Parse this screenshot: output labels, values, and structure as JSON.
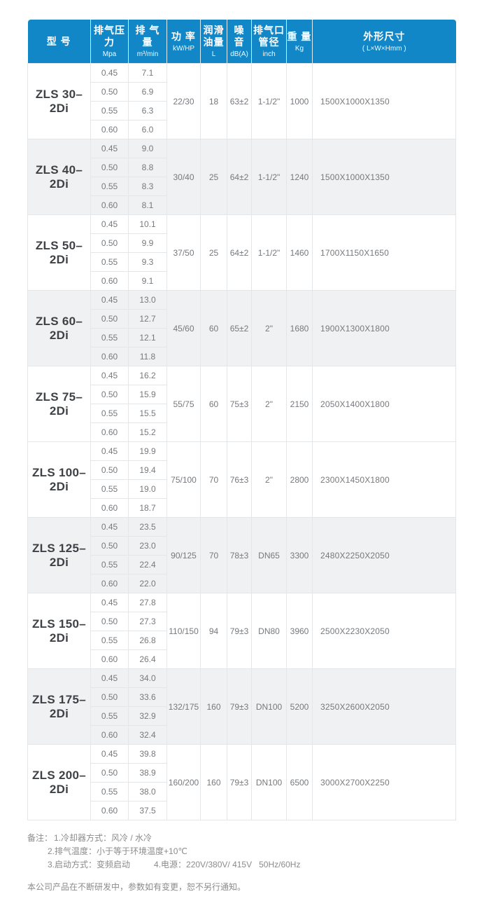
{
  "table": {
    "columns": [
      {
        "label": "型 号",
        "sub": ""
      },
      {
        "label": "排气压力",
        "sub": "Mpa"
      },
      {
        "label": "排 气 量",
        "sub": "m³/min"
      },
      {
        "label": "功 率",
        "sub": "kW/HP"
      },
      {
        "label": "润滑油量",
        "sub": "L"
      },
      {
        "label": "噪 音",
        "sub": "dB(A)"
      },
      {
        "label": "排气口管径",
        "sub": "inch"
      },
      {
        "label": "重 量",
        "sub": "Kg"
      },
      {
        "label": "外形尺寸",
        "sub": "( L×W×Hmm )"
      }
    ],
    "rows": [
      {
        "model": "ZLS 30–2Di",
        "shaded": false,
        "power": "22/30",
        "oil": "18",
        "noise": "63±2",
        "port": "1-1/2\"",
        "weight": "1000",
        "dims": "1500X1000X1350",
        "sub_rows": [
          {
            "pressure": "0.45",
            "flow": "7.1"
          },
          {
            "pressure": "0.50",
            "flow": "6.9"
          },
          {
            "pressure": "0.55",
            "flow": "6.3"
          },
          {
            "pressure": "0.60",
            "flow": "6.0"
          }
        ]
      },
      {
        "model": "ZLS 40–2Di",
        "shaded": true,
        "power": "30/40",
        "oil": "25",
        "noise": "64±2",
        "port": "1-1/2\"",
        "weight": "1240",
        "dims": "1500X1000X1350",
        "sub_rows": [
          {
            "pressure": "0.45",
            "flow": "9.0"
          },
          {
            "pressure": "0.50",
            "flow": "8.8"
          },
          {
            "pressure": "0.55",
            "flow": "8.3"
          },
          {
            "pressure": "0.60",
            "flow": "8.1"
          }
        ]
      },
      {
        "model": "ZLS 50–2Di",
        "shaded": false,
        "power": "37/50",
        "oil": "25",
        "noise": "64±2",
        "port": "1-1/2\"",
        "weight": "1460",
        "dims": "1700X1150X1650",
        "sub_rows": [
          {
            "pressure": "0.45",
            "flow": "10.1"
          },
          {
            "pressure": "0.50",
            "flow": "9.9"
          },
          {
            "pressure": "0.55",
            "flow": "9.3"
          },
          {
            "pressure": "0.60",
            "flow": "9.1"
          }
        ]
      },
      {
        "model": "ZLS 60–2Di",
        "shaded": true,
        "power": "45/60",
        "oil": "60",
        "noise": "65±2",
        "port": "2\"",
        "weight": "1680",
        "dims": "1900X1300X1800",
        "sub_rows": [
          {
            "pressure": "0.45",
            "flow": "13.0"
          },
          {
            "pressure": "0.50",
            "flow": "12.7"
          },
          {
            "pressure": "0.55",
            "flow": "12.1"
          },
          {
            "pressure": "0.60",
            "flow": "11.8"
          }
        ]
      },
      {
        "model": "ZLS 75–2Di",
        "shaded": false,
        "power": "55/75",
        "oil": "60",
        "noise": "75±3",
        "port": "2\"",
        "weight": "2150",
        "dims": "2050X1400X1800",
        "sub_rows": [
          {
            "pressure": "0.45",
            "flow": "16.2"
          },
          {
            "pressure": "0.50",
            "flow": "15.9"
          },
          {
            "pressure": "0.55",
            "flow": "15.5"
          },
          {
            "pressure": "0.60",
            "flow": "15.2"
          }
        ]
      },
      {
        "model": "ZLS 100–2Di",
        "shaded": false,
        "power": "75/100",
        "oil": "70",
        "noise": "76±3",
        "port": "2\"",
        "weight": "2800",
        "dims": "2300X1450X1800",
        "sub_rows": [
          {
            "pressure": "0.45",
            "flow": "19.9"
          },
          {
            "pressure": "0.50",
            "flow": "19.4"
          },
          {
            "pressure": "0.55",
            "flow": "19.0"
          },
          {
            "pressure": "0.60",
            "flow": "18.7"
          }
        ]
      },
      {
        "model": "ZLS 125–2Di",
        "shaded": true,
        "power": "90/125",
        "oil": "70",
        "noise": "78±3",
        "port": "DN65",
        "weight": "3300",
        "dims": "2480X2250X2050",
        "sub_rows": [
          {
            "pressure": "0.45",
            "flow": "23.5"
          },
          {
            "pressure": "0.50",
            "flow": "23.0"
          },
          {
            "pressure": "0.55",
            "flow": "22.4"
          },
          {
            "pressure": "0.60",
            "flow": "22.0"
          }
        ]
      },
      {
        "model": "ZLS 150–2Di",
        "shaded": false,
        "power": "110/150",
        "oil": "94",
        "noise": "79±3",
        "port": "DN80",
        "weight": "3960",
        "dims": "2500X2230X2050",
        "sub_rows": [
          {
            "pressure": "0.45",
            "flow": "27.8"
          },
          {
            "pressure": "0.50",
            "flow": "27.3"
          },
          {
            "pressure": "0.55",
            "flow": "26.8"
          },
          {
            "pressure": "0.60",
            "flow": "26.4"
          }
        ]
      },
      {
        "model": "ZLS 175–2Di",
        "shaded": true,
        "power": "132/175",
        "oil": "160",
        "noise": "79±3",
        "port": "DN100",
        "weight": "5200",
        "dims": "3250X2600X2050",
        "sub_rows": [
          {
            "pressure": "0.45",
            "flow": "34.0"
          },
          {
            "pressure": "0.50",
            "flow": "33.6"
          },
          {
            "pressure": "0.55",
            "flow": "32.9"
          },
          {
            "pressure": "0.60",
            "flow": "32.4"
          }
        ]
      },
      {
        "model": "ZLS 200–2Di",
        "shaded": false,
        "power": "160/200",
        "oil": "160",
        "noise": "79±3",
        "port": "DN100",
        "weight": "6500",
        "dims": "3000X2700X2250",
        "sub_rows": [
          {
            "pressure": "0.45",
            "flow": "39.8"
          },
          {
            "pressure": "0.50",
            "flow": "38.9"
          },
          {
            "pressure": "0.55",
            "flow": "38.0"
          },
          {
            "pressure": "0.60",
            "flow": "37.5"
          }
        ]
      }
    ]
  },
  "notes": {
    "prefix": "备注：",
    "items": [
      "1.冷却器方式：风冷 / 水冷",
      "2.排气温度：小于等于环境温度+10℃",
      "3.启动方式：变频启动",
      "4.电源：220V/380V/ 415V   50Hz/60Hz"
    ],
    "disclaimer": "本公司产品在不断研发中，参数如有变更，恕不另行通知。"
  },
  "colors": {
    "header_bg": "#1287c8",
    "shaded_row_bg": "#eff1f3",
    "border": "#e4e7ea",
    "model_text": "#3e4145",
    "data_text": "#76797d",
    "note_text": "#8b8b8b"
  }
}
